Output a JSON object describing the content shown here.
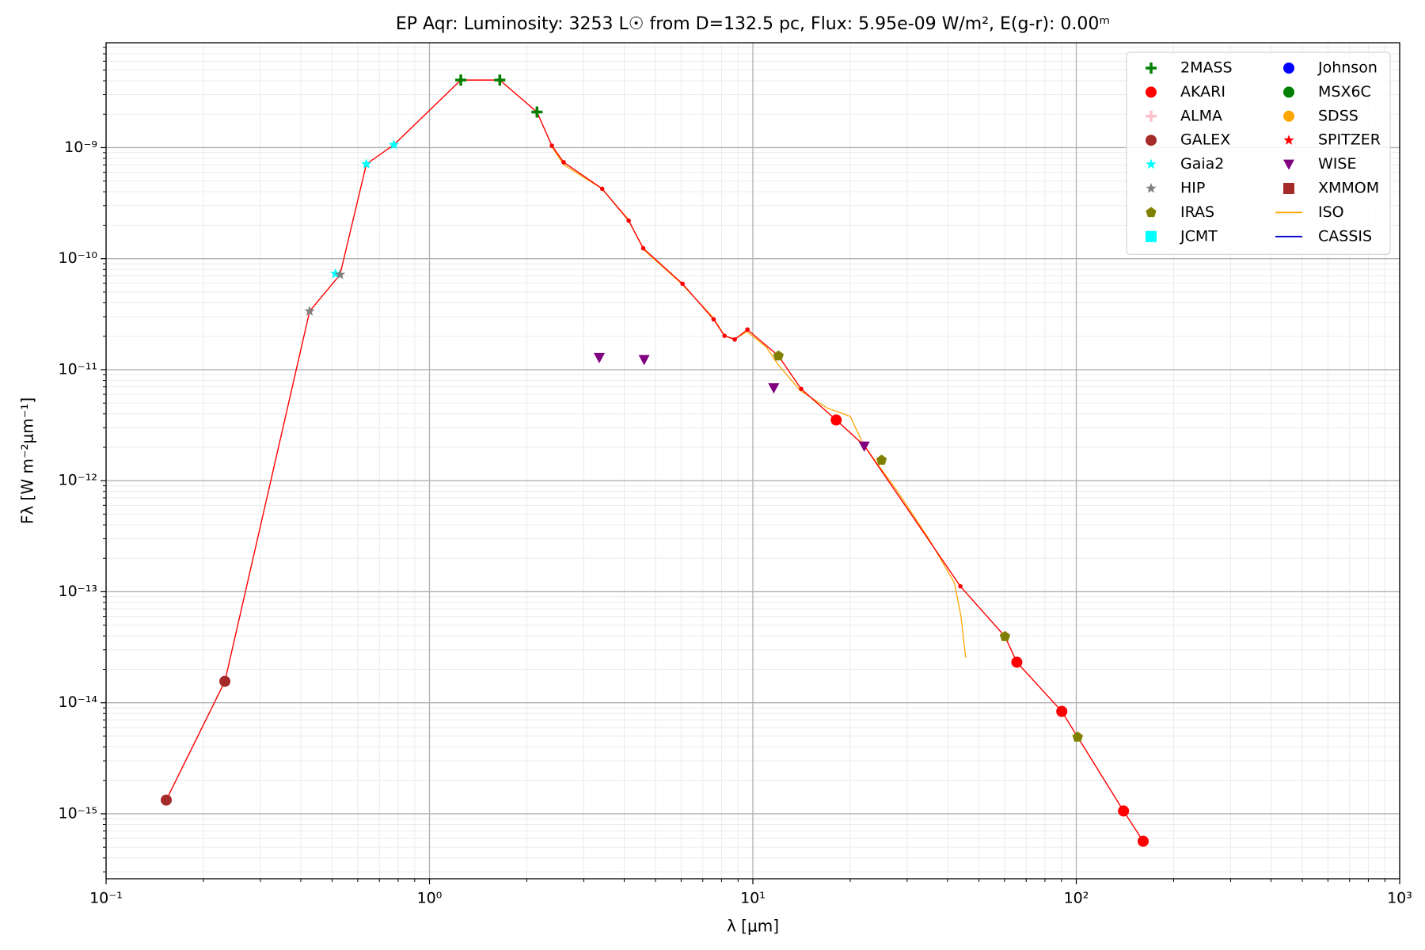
{
  "chart_data": {
    "type": "scatter",
    "title": "EP Aqr:  Luminosity: 3253 L☉ from D=132.5 pc, Flux: 5.95e-09 W/m², E(g-r): 0.00ᵐ",
    "x_label": "λ [μm]",
    "y_label": "Fλ [W m⁻²μm⁻¹]",
    "xscale": "log",
    "yscale": "log",
    "grid": true,
    "legend_position": "upper right",
    "xlim": [
      0.1,
      1000
    ],
    "ylim": [
      2.6e-16,
      8.8e-09
    ],
    "xticks": [
      {
        "value": 0.1,
        "label": "10⁻¹"
      },
      {
        "value": 1,
        "label": "10⁰"
      },
      {
        "value": 10,
        "label": "10¹"
      },
      {
        "value": 100,
        "label": "10²"
      },
      {
        "value": 1000,
        "label": "10³"
      }
    ],
    "yticks": [
      {
        "value": 1e-15,
        "label": "10⁻¹⁵"
      },
      {
        "value": 1e-14,
        "label": "10⁻¹⁴"
      },
      {
        "value": 1e-13,
        "label": "10⁻¹³"
      },
      {
        "value": 1e-12,
        "label": "10⁻¹²"
      },
      {
        "value": 1e-11,
        "label": "10⁻¹¹"
      },
      {
        "value": 1e-10,
        "label": "10⁻¹⁰"
      },
      {
        "value": 1e-09,
        "label": "10⁻⁹"
      }
    ],
    "model": {
      "color": "#ff0000",
      "x": [
        0.1535,
        0.233,
        0.426,
        0.529,
        0.638,
        0.776,
        1.25,
        1.65,
        2.15,
        2.39,
        2.6,
        3.42,
        4.13,
        4.58,
        6.06,
        7.56,
        8.17,
        8.79,
        9.62,
        12.0,
        14.1,
        18.1,
        22.1,
        43.8,
        60.2,
        65.5,
        90.2,
        101,
        140,
        161
      ],
      "values": [
        1.33e-15,
        1.56e-14,
        3.36e-11,
        7.18e-11,
        7.11e-10,
        1.06e-09,
        4.06e-09,
        4.06e-09,
        2.09e-09,
        1.04e-09,
        7.38e-10,
        4.26e-10,
        2.2e-10,
        1.24e-10,
        5.94e-11,
        2.84e-11,
        2.02e-11,
        1.87e-11,
        2.3e-11,
        1.33e-11,
        6.71e-12,
        3.52e-12,
        2.07e-12,
        1.12e-13,
        3.95e-14,
        2.32e-14,
        8.36e-15,
        4.91e-15,
        1.06e-15,
        5.66e-16
      ]
    },
    "series": [
      {
        "name": "2MASS",
        "color": "#008000",
        "marker": "plus",
        "x": [
          1.25,
          1.65,
          2.15
        ],
        "values": [
          4.06e-09,
          4.06e-09,
          2.09e-09
        ]
      },
      {
        "name": "AKARI",
        "color": "#ff0000",
        "marker": "circle",
        "x": [
          18.1,
          65.5,
          90.2,
          140,
          161
        ],
        "values": [
          3.52e-12,
          2.32e-14,
          8.36e-15,
          1.06e-15,
          5.66e-16
        ]
      },
      {
        "name": "ALMA",
        "color": "#ffc0cb",
        "marker": "plus",
        "x": [],
        "values": []
      },
      {
        "name": "GALEX",
        "color": "#a52a2a",
        "marker": "circle",
        "x": [
          0.1535,
          0.233
        ],
        "values": [
          1.33e-15,
          1.56e-14
        ]
      },
      {
        "name": "Gaia2",
        "color": "#00ffff",
        "marker": "star",
        "x": [
          0.512,
          0.638,
          0.776
        ],
        "values": [
          7.31e-11,
          7.11e-10,
          1.06e-09
        ]
      },
      {
        "name": "HIP",
        "color": "#808080",
        "marker": "star",
        "x": [
          0.426,
          0.529
        ],
        "values": [
          3.36e-11,
          7.18e-11
        ]
      },
      {
        "name": "IRAS",
        "color": "#808000",
        "marker": "pentagon",
        "x": [
          12.0,
          25.0,
          60.2,
          101
        ],
        "values": [
          1.33e-11,
          1.53e-12,
          3.95e-14,
          4.91e-15
        ]
      },
      {
        "name": "JCMT",
        "color": "#00ffff",
        "marker": "square",
        "x": [],
        "values": []
      },
      {
        "name": "Johnson",
        "color": "#0000ff",
        "marker": "circle",
        "x": [],
        "values": []
      },
      {
        "name": "MSX6C",
        "color": "#008000",
        "marker": "circle",
        "x": [],
        "values": []
      },
      {
        "name": "SDSS",
        "color": "#ffa500",
        "marker": "circle",
        "x": [],
        "values": []
      },
      {
        "name": "SPITZER",
        "color": "#ff0000",
        "marker": "star",
        "x": [],
        "values": []
      },
      {
        "name": "WISE",
        "color": "#800080",
        "marker": "triangle_down",
        "x": [
          3.35,
          4.61,
          11.6,
          22.1
        ],
        "values": [
          1.28e-11,
          1.23e-11,
          6.84e-12,
          2.04e-12
        ]
      },
      {
        "name": "XMMOM",
        "color": "#a52a2a",
        "marker": "square",
        "x": [],
        "values": []
      },
      {
        "name": "ISO",
        "color": "#ffa500",
        "marker": "line",
        "x": [
          2.4,
          2.6,
          3.4,
          4.1,
          4.6,
          6.0,
          7.5,
          8.2,
          8.8,
          9.6,
          11,
          12,
          14,
          17,
          20,
          22,
          28,
          35,
          42,
          44,
          45.5
        ],
        "values": [
          1e-09,
          7e-10,
          4.3e-10,
          2.3e-10,
          1.2e-10,
          6e-11,
          3e-11,
          2e-11,
          1.9e-11,
          2.2e-11,
          1.6e-11,
          1.1e-11,
          6.5e-12,
          4.5e-12,
          3.8e-12,
          2.1e-12,
          8e-13,
          3e-13,
          1.2e-13,
          6e-14,
          2.55e-14
        ]
      },
      {
        "name": "CASSIS",
        "color": "#0000cd",
        "marker": "line",
        "x": [],
        "values": []
      }
    ]
  }
}
